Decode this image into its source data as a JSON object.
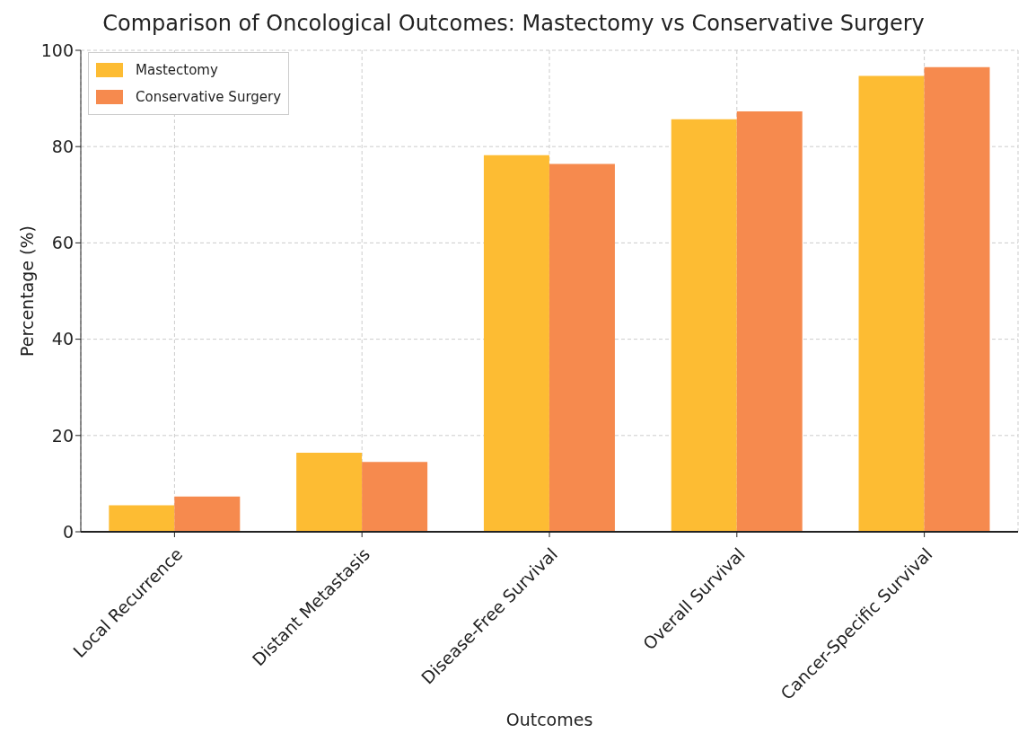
{
  "chart_data": {
    "type": "bar",
    "title": "Comparison of Oncological Outcomes: Mastectomy vs Conservative Surgery",
    "xlabel": "Outcomes",
    "ylabel": "Percentage (%)",
    "categories": [
      "Local Recurrence",
      "Distant Metastasis",
      "Disease-Free Survival",
      "Overall Survival",
      "Cancer-Specific Survival"
    ],
    "series": [
      {
        "name": "Mastectomy",
        "color": "#fdbc33",
        "values": [
          5.5,
          16.4,
          78.2,
          85.7,
          94.7
        ]
      },
      {
        "name": "Conservative Surgery",
        "color": "#f68a4e",
        "values": [
          7.3,
          14.5,
          76.4,
          87.3,
          96.5
        ]
      }
    ],
    "ylim": [
      0,
      100
    ],
    "yticks": [
      0,
      20,
      40,
      60,
      80,
      100
    ],
    "grid": true,
    "legend": "top left"
  }
}
